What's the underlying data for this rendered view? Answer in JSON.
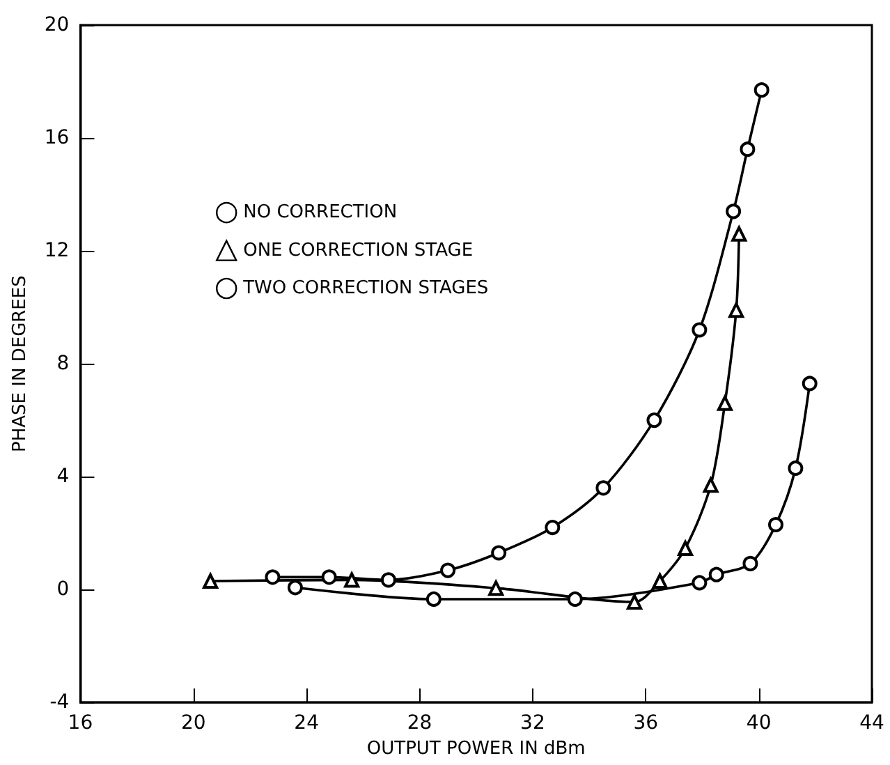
{
  "chart_data": {
    "type": "line",
    "xlabel": "OUTPUT POWER IN dBm",
    "ylabel": "PHASE IN DEGREES",
    "xlim": [
      16,
      44
    ],
    "xticks": [
      16,
      20,
      24,
      28,
      32,
      36,
      40,
      44
    ],
    "ylim": [
      -4,
      20
    ],
    "yticks": [
      -4,
      0,
      4,
      8,
      12,
      16,
      20
    ],
    "grid": false,
    "legend": "top left",
    "line_style": "solid",
    "series": [
      {
        "name": "NO CORRECTION",
        "color": "#000000",
        "marker": "circle",
        "x": [
          22.8,
          24.8,
          26.9,
          29.0,
          30.8,
          32.7,
          34.5,
          36.3,
          37.9,
          39.1,
          39.6,
          40.1
        ],
        "values": [
          0.44,
          0.44,
          0.34,
          0.68,
          1.3,
          2.2,
          3.6,
          6.0,
          9.2,
          13.4,
          15.6,
          17.7
        ]
      },
      {
        "name": "ONE CORRECTION STAGE",
        "color": "#000000",
        "marker": "triangle",
        "x": [
          20.6,
          25.6,
          30.7,
          35.6,
          36.5,
          37.4,
          38.3,
          38.8,
          39.2,
          39.3
        ],
        "values": [
          0.3,
          0.34,
          0.05,
          -0.44,
          0.3,
          1.46,
          3.7,
          6.6,
          9.9,
          12.6
        ]
      },
      {
        "name": "TWO CORRECTION STAGES",
        "color": "#000000",
        "marker": "circle",
        "x": [
          23.6,
          28.5,
          33.5,
          37.9,
          38.5,
          39.7,
          40.6,
          41.3,
          41.8
        ],
        "values": [
          0.07,
          -0.34,
          -0.34,
          0.24,
          0.53,
          0.92,
          2.3,
          4.3,
          7.3
        ]
      }
    ]
  }
}
